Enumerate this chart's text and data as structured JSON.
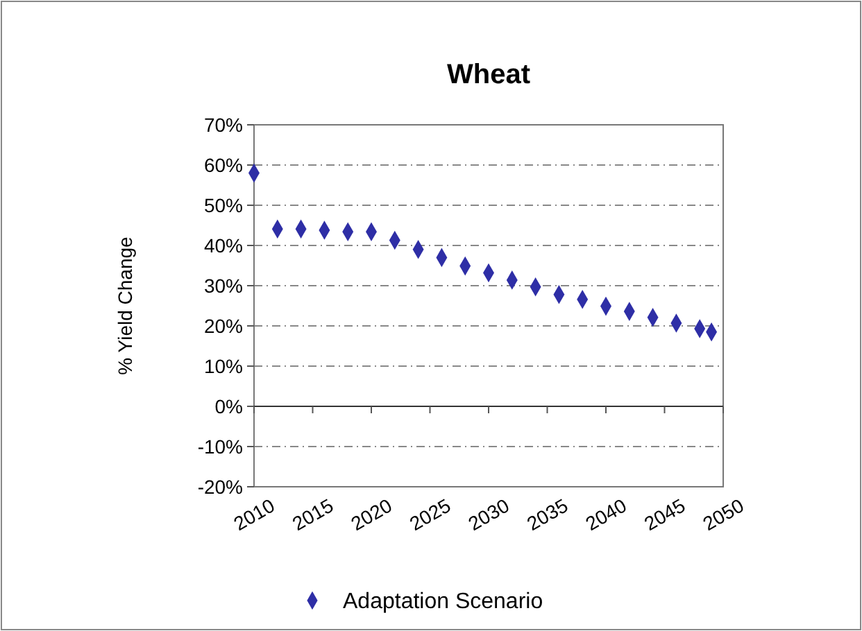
{
  "chart_data": {
    "type": "scatter",
    "title": "Wheat",
    "ylabel": "% Yield Change",
    "x": [
      2010,
      2012,
      2014,
      2016,
      2018,
      2020,
      2022,
      2024,
      2026,
      2028,
      2030,
      2032,
      2034,
      2036,
      2038,
      2040,
      2042,
      2044,
      2046,
      2048,
      2049
    ],
    "series": [
      {
        "name": "Adaptation Scenario",
        "color": "#2e2ea6",
        "values": [
          58,
          44.1,
          44.1,
          43.8,
          43.4,
          43.4,
          41.3,
          39,
          37,
          34.9,
          33.2,
          31.4,
          29.7,
          27.8,
          26.6,
          24.9,
          23.6,
          22.1,
          20.7,
          19.3,
          18.5
        ]
      }
    ],
    "xlim": [
      2010,
      2050
    ],
    "xticks": [
      2010,
      2015,
      2020,
      2025,
      2030,
      2035,
      2040,
      2045,
      2050
    ],
    "ylim": [
      -20,
      70
    ],
    "yticks": [
      {
        "value": -20,
        "label": "-20%"
      },
      {
        "value": -10,
        "label": "-10%"
      },
      {
        "value": 0,
        "label": "0%"
      },
      {
        "value": 10,
        "label": "10%"
      },
      {
        "value": 20,
        "label": "20%"
      },
      {
        "value": 30,
        "label": "30%"
      },
      {
        "value": 40,
        "label": "40%"
      },
      {
        "value": 50,
        "label": "50%"
      },
      {
        "value": 60,
        "label": "60%"
      },
      {
        "value": 70,
        "label": "70%"
      }
    ],
    "grid": "y",
    "legend": "bottom",
    "marker": "diamond"
  }
}
